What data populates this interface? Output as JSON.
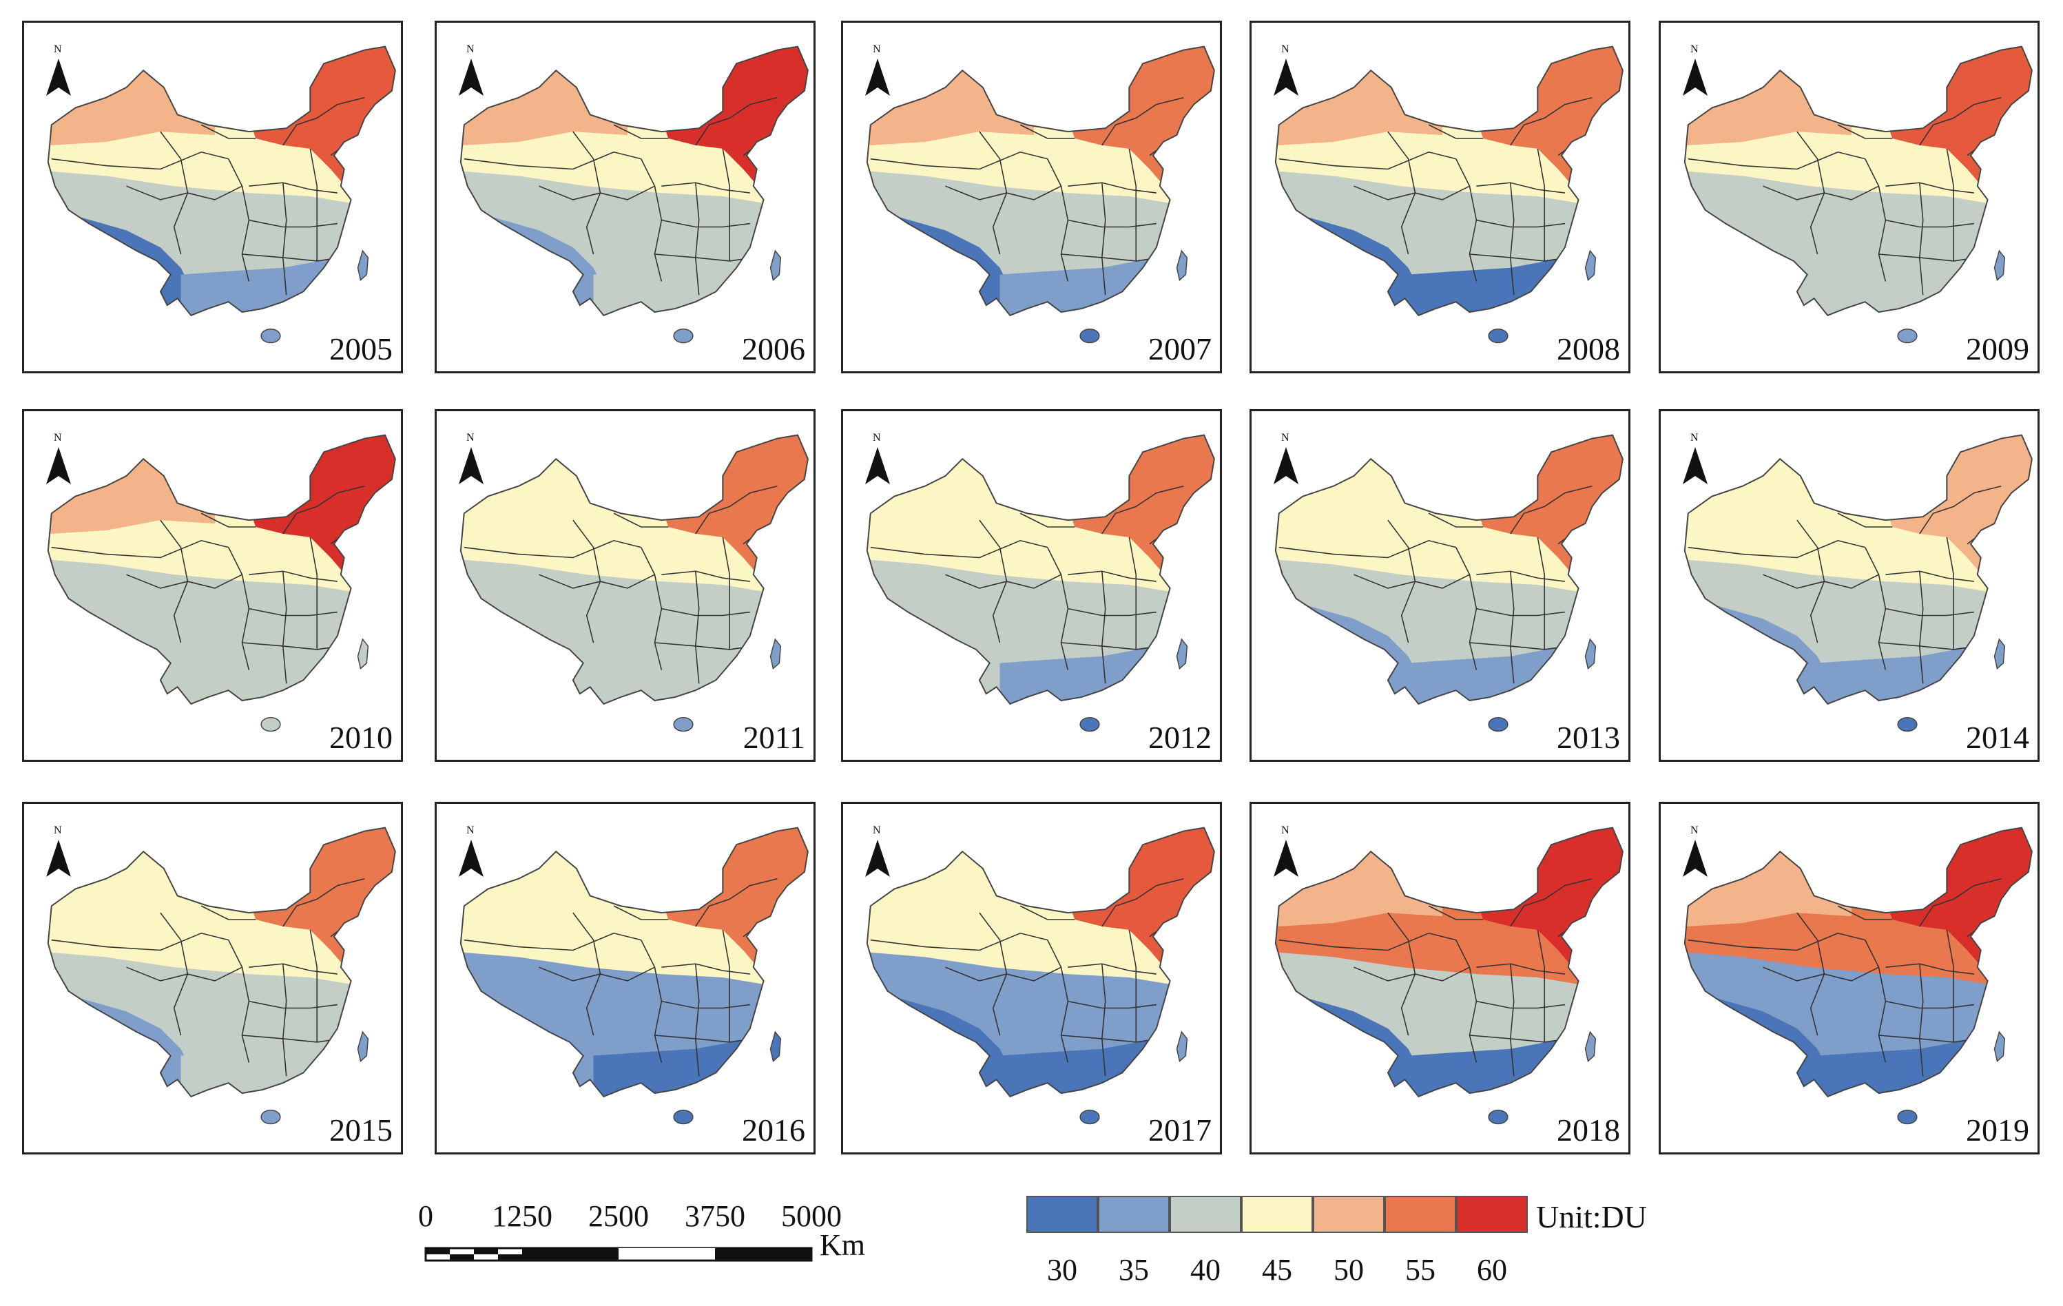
{
  "figure": {
    "panels": [
      {
        "year": "2005",
        "colors": {
          "nw": "#f3b48a",
          "ne": "#e55a3c",
          "n": "#fbf6c4",
          "c": "#c3cec7",
          "sw": "#4a75b8",
          "s": "#7f9ec9",
          "hainan": "#7f9ec9",
          "taiwan": "#7f9ec9"
        }
      },
      {
        "year": "2006",
        "colors": {
          "nw": "#f3b48a",
          "ne": "#d92f2a",
          "n": "#fbf6c4",
          "c": "#c3cec7",
          "sw": "#7f9ec9",
          "s": "#c3cec7",
          "hainan": "#7f9ec9",
          "taiwan": "#7f9ec9"
        }
      },
      {
        "year": "2007",
        "colors": {
          "nw": "#f3b48a",
          "ne": "#e9784f",
          "n": "#fbf6c4",
          "c": "#c3cec7",
          "sw": "#4a75b8",
          "s": "#7f9ec9",
          "hainan": "#4a75b8",
          "taiwan": "#7f9ec9"
        }
      },
      {
        "year": "2008",
        "colors": {
          "nw": "#f3b48a",
          "ne": "#e9784f",
          "n": "#fbf6c4",
          "c": "#c3cec7",
          "sw": "#4a75b8",
          "s": "#4a75b8",
          "hainan": "#4a75b8",
          "taiwan": "#7f9ec9"
        }
      },
      {
        "year": "2009",
        "colors": {
          "nw": "#f3b48a",
          "ne": "#e55a3c",
          "n": "#fbf6c4",
          "c": "#c3cec7",
          "sw": "#c3cec7",
          "s": "#c3cec7",
          "hainan": "#7f9ec9",
          "taiwan": "#7f9ec9"
        }
      },
      {
        "year": "2010",
        "colors": {
          "nw": "#f3b48a",
          "ne": "#d92f2a",
          "n": "#fbf6c4",
          "c": "#c3cec7",
          "sw": "#c3cec7",
          "s": "#c3cec7",
          "hainan": "#c3cec7",
          "taiwan": "#c3cec7"
        }
      },
      {
        "year": "2011",
        "colors": {
          "nw": "#fbf6c4",
          "ne": "#e9784f",
          "n": "#fbf6c4",
          "c": "#c3cec7",
          "sw": "#c3cec7",
          "s": "#c3cec7",
          "hainan": "#7f9ec9",
          "taiwan": "#7f9ec9"
        }
      },
      {
        "year": "2012",
        "colors": {
          "nw": "#fbf6c4",
          "ne": "#e9784f",
          "n": "#fbf6c4",
          "c": "#c3cec7",
          "sw": "#c3cec7",
          "s": "#7f9ec9",
          "hainan": "#4a75b8",
          "taiwan": "#7f9ec9"
        }
      },
      {
        "year": "2013",
        "colors": {
          "nw": "#fbf6c4",
          "ne": "#e9784f",
          "n": "#fbf6c4",
          "c": "#c3cec7",
          "sw": "#7f9ec9",
          "s": "#7f9ec9",
          "hainan": "#4a75b8",
          "taiwan": "#7f9ec9"
        }
      },
      {
        "year": "2014",
        "colors": {
          "nw": "#fbf6c4",
          "ne": "#f3b48a",
          "n": "#fbf6c4",
          "c": "#c3cec7",
          "sw": "#7f9ec9",
          "s": "#7f9ec9",
          "hainan": "#4a75b8",
          "taiwan": "#7f9ec9"
        }
      },
      {
        "year": "2015",
        "colors": {
          "nw": "#fbf6c4",
          "ne": "#e9784f",
          "n": "#fbf6c4",
          "c": "#c3cec7",
          "sw": "#7f9ec9",
          "s": "#c3cec7",
          "hainan": "#7f9ec9",
          "taiwan": "#7f9ec9"
        }
      },
      {
        "year": "2016",
        "colors": {
          "nw": "#fbf6c4",
          "ne": "#e9784f",
          "n": "#fbf6c4",
          "c": "#7f9ec9",
          "sw": "#7f9ec9",
          "s": "#4a75b8",
          "hainan": "#4a75b8",
          "taiwan": "#4a75b8"
        }
      },
      {
        "year": "2017",
        "colors": {
          "nw": "#fbf6c4",
          "ne": "#e55a3c",
          "n": "#fbf6c4",
          "c": "#7f9ec9",
          "sw": "#4a75b8",
          "s": "#4a75b8",
          "hainan": "#4a75b8",
          "taiwan": "#7f9ec9"
        }
      },
      {
        "year": "2018",
        "colors": {
          "nw": "#f3b48a",
          "ne": "#d92f2a",
          "n": "#e9784f",
          "c": "#c3cec7",
          "sw": "#4a75b8",
          "s": "#4a75b8",
          "hainan": "#4a75b8",
          "taiwan": "#7f9ec9"
        }
      },
      {
        "year": "2019",
        "colors": {
          "nw": "#f3b48a",
          "ne": "#d92f2a",
          "n": "#e9784f",
          "c": "#7f9ec9",
          "sw": "#4a75b8",
          "s": "#4a75b8",
          "hainan": "#4a75b8",
          "taiwan": "#7f9ec9"
        }
      }
    ],
    "north_label": "N"
  },
  "scale_bar": {
    "ticks": [
      "0",
      "1250",
      "2500",
      "3750",
      "5000"
    ],
    "unit": "Km"
  },
  "legend": {
    "unit_label": "Unit:DU",
    "colors": [
      "#4a75b8",
      "#7f9ec9",
      "#c3cec7",
      "#fbf6c4",
      "#f3b48a",
      "#e9784f",
      "#d92f2a"
    ],
    "labels": [
      "30",
      "35",
      "40",
      "45",
      "50",
      "55",
      "60"
    ]
  }
}
